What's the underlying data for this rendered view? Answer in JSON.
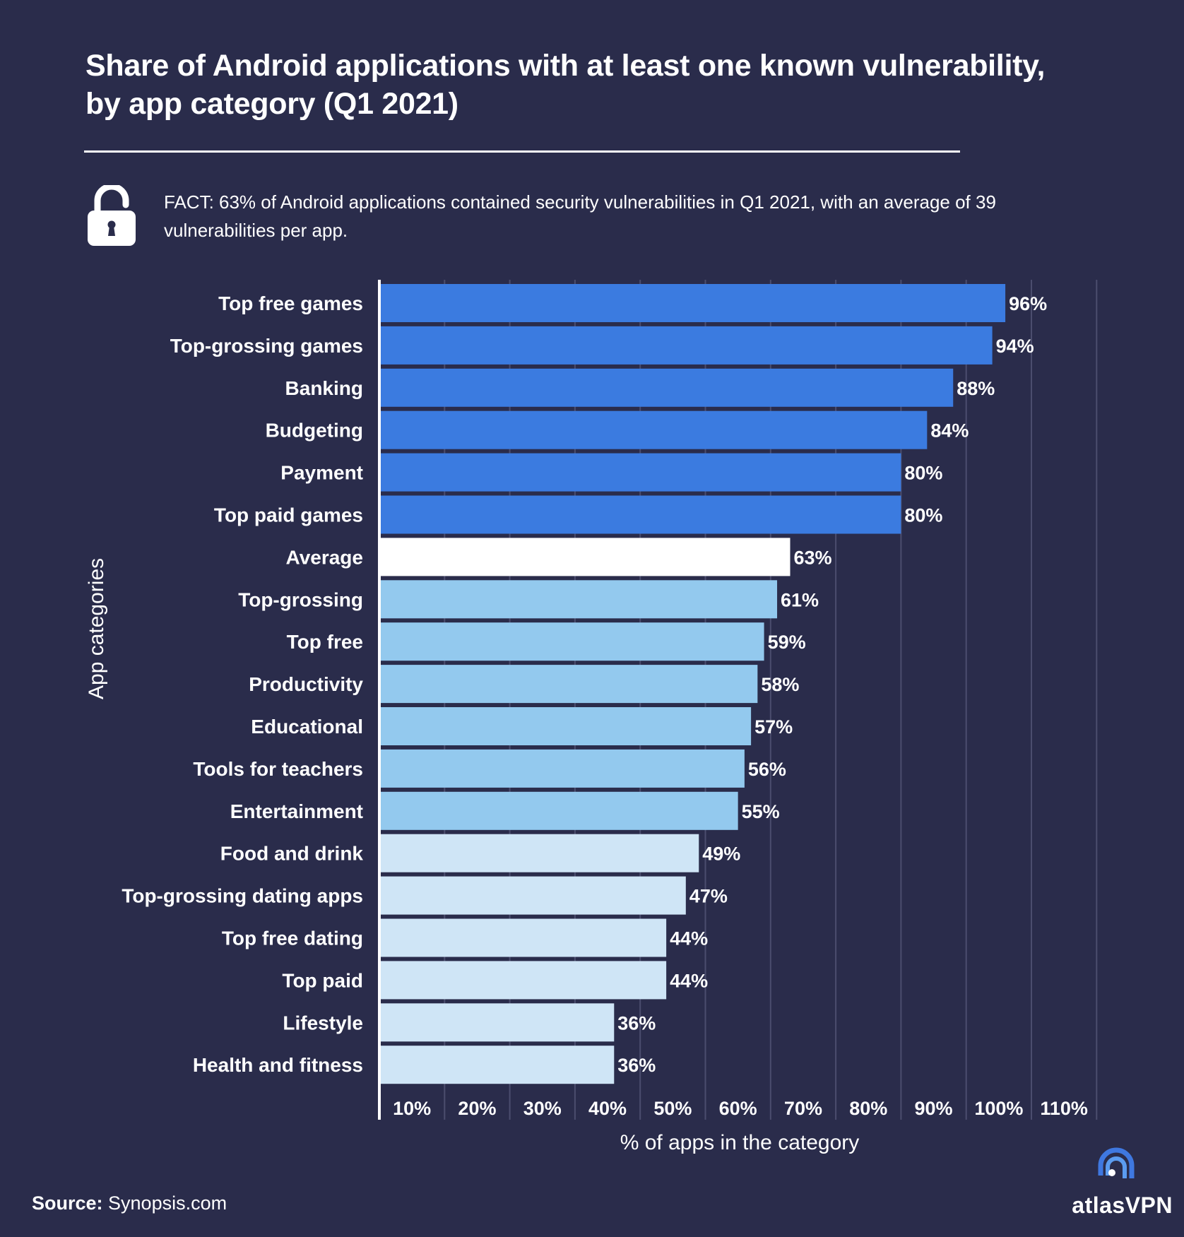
{
  "header": {
    "title_line1": "Share of Android applications with at least one known vulnerability,",
    "title_line2": "by app category  (Q1 2021)"
  },
  "fact": {
    "icon": "unlocked-padlock-icon",
    "line1": "FACT: 63% of Android applications contained security vulnerabilities in Q1 2021, with an average of 39",
    "line2": "vulnerabilities per app."
  },
  "chart_data": {
    "type": "bar",
    "orientation": "horizontal",
    "title": "Share of Android applications with at least one known vulnerability, by app category (Q1 2021)",
    "xlabel": "% of apps in the category",
    "ylabel": "App categories",
    "xlim": [
      0,
      110
    ],
    "grid": true,
    "x_ticks": [
      "10%",
      "20%",
      "30%",
      "40%",
      "50%",
      "60%",
      "70%",
      "80%",
      "90%",
      "100%",
      "110%"
    ],
    "categories": [
      "Top free games",
      "Top-grossing games",
      "Banking",
      "Budgeting",
      "Payment",
      "Top paid games",
      "Average",
      "Top-grossing",
      "Top free",
      "Productivity",
      "Educational",
      "Tools for teachers",
      "Entertainment",
      "Food and drink",
      "Top-grossing dating apps",
      "Top free dating",
      "Top paid",
      "Lifestyle",
      "Health and fitness"
    ],
    "values": [
      96,
      94,
      88,
      84,
      80,
      80,
      63,
      61,
      59,
      58,
      57,
      56,
      55,
      49,
      47,
      44,
      44,
      36,
      36
    ],
    "value_labels": [
      "96%",
      "94%",
      "88%",
      "84%",
      "80%",
      "80%",
      "63%",
      "61%",
      "59%",
      "58%",
      "57%",
      "56%",
      "55%",
      "49%",
      "47%",
      "44%",
      "44%",
      "36%",
      "36%"
    ],
    "groups": [
      "high",
      "high",
      "high",
      "high",
      "high",
      "high",
      "average",
      "mid",
      "mid",
      "mid",
      "mid",
      "mid",
      "mid",
      "low",
      "low",
      "low",
      "low",
      "low",
      "low"
    ],
    "colors": {
      "high": "#3b7be0",
      "average": "#ffffff",
      "mid": "#93c9ee",
      "low": "#cfe5f6",
      "grid": "#4b4d6e",
      "axis": "#ffffff",
      "background": "#2a2c4b"
    }
  },
  "footer": {
    "source_label": "Source:",
    "source_value": " Synopsis.com",
    "brand": "atlasVPN",
    "brand_icon": "atlasvpn-logo-icon"
  }
}
